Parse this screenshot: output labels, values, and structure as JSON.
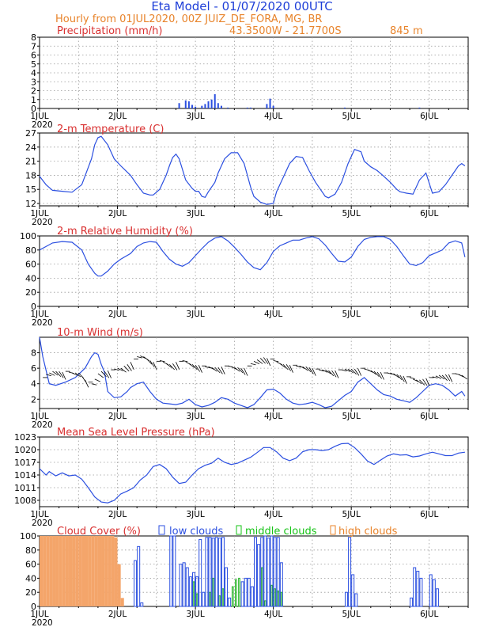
{
  "header": {
    "title": "Eta Model - 01/07/2020 00UTC",
    "subtitle": "Hourly from 01JUL2020, 00Z  JUIZ_DE_FORA, MG, BR",
    "location": "43.3500W - 21.7700S",
    "elevation": "845   m"
  },
  "colors": {
    "title": "#1f3fd8",
    "orange": "#e8832a",
    "red": "#d93030",
    "line": "#2b4fe0",
    "green": "#16c316",
    "grid": "#999999"
  },
  "chart_data": [
    {
      "id": "precip",
      "type": "bar",
      "title": "Precipitation (mm/h)",
      "ylim": [
        0,
        8
      ],
      "yticks": [
        0,
        1,
        2,
        3,
        4,
        5,
        6,
        7,
        8
      ],
      "xlabel_days": [
        "1JUL",
        "2JUL",
        "3JUL",
        "4JUL",
        "5JUL",
        "6JUL"
      ],
      "xlabel_year": "2020",
      "x": [
        43,
        45,
        46,
        47,
        48,
        50,
        51,
        52,
        53,
        54,
        55,
        56,
        58,
        64,
        65,
        70,
        71,
        72,
        94,
        117
      ],
      "values": [
        0.6,
        0.9,
        0.8,
        0.4,
        0.2,
        0.3,
        0.5,
        0.8,
        1.0,
        1.6,
        0.6,
        0.3,
        0.1,
        0.1,
        0.1,
        0.5,
        1.1,
        0.3,
        0.1,
        0.1
      ]
    },
    {
      "id": "temp",
      "type": "line",
      "title": "2-m Temperature (C)",
      "ylim": [
        11.5,
        27
      ],
      "yticks": [
        12,
        15,
        18,
        21,
        24,
        27
      ],
      "xlabel_days": [
        "1JUL",
        "2JUL",
        "3JUL",
        "4JUL",
        "5JUL",
        "6JUL"
      ],
      "xlabel_year": "2020",
      "x": [
        0,
        2,
        4,
        7,
        10,
        13,
        16,
        17,
        18,
        19,
        21,
        23,
        25,
        28,
        30,
        32,
        34,
        35,
        37,
        39,
        40,
        41,
        42,
        43,
        45,
        47,
        48,
        49,
        50,
        51,
        52,
        54,
        55,
        57,
        59,
        61,
        63,
        64,
        65,
        66,
        68,
        70,
        72,
        73,
        75,
        77,
        79,
        81,
        83,
        85,
        87,
        88,
        89,
        91,
        93,
        95,
        97,
        99,
        100,
        102,
        104,
        106,
        108,
        110,
        111,
        113,
        115,
        117,
        119,
        121,
        123,
        125,
        127,
        129,
        130,
        131
      ],
      "values": [
        17.8,
        16.0,
        14.8,
        14.6,
        14.4,
        16.0,
        21.5,
        24.5,
        26.0,
        26.3,
        24.5,
        21.5,
        20.0,
        18.0,
        16.0,
        14.2,
        13.8,
        13.8,
        15.0,
        18.0,
        20.0,
        21.8,
        22.5,
        21.5,
        17.0,
        15.2,
        14.6,
        14.6,
        13.5,
        13.3,
        14.5,
        16.5,
        18.5,
        21.5,
        22.8,
        22.8,
        20.5,
        18.0,
        15.5,
        13.5,
        12.3,
        11.8,
        12.0,
        14.5,
        17.5,
        20.5,
        22.0,
        21.8,
        19.0,
        16.5,
        14.5,
        13.5,
        13.2,
        14.0,
        16.5,
        20.5,
        23.5,
        23.0,
        21.0,
        19.8,
        19.0,
        17.8,
        16.5,
        15.0,
        14.5,
        14.2,
        14.0,
        17.0,
        18.5,
        14.2,
        14.5,
        16.0,
        18.0,
        20.0,
        20.5,
        20.0
      ]
    },
    {
      "id": "rh",
      "type": "line",
      "title": "2-m Relative Humidity (%)",
      "ylim": [
        0,
        100
      ],
      "yticks": [
        0,
        20,
        40,
        60,
        80,
        100
      ],
      "xlabel_days": [
        "1JUL",
        "2JUL",
        "3JUL",
        "4JUL",
        "5JUL",
        "6JUL"
      ],
      "xlabel_year": "2020",
      "x": [
        0,
        2,
        4,
        7,
        10,
        13,
        15,
        17,
        18,
        19,
        21,
        23,
        25,
        28,
        30,
        32,
        34,
        36,
        38,
        40,
        42,
        44,
        46,
        48,
        50,
        52,
        54,
        56,
        58,
        60,
        62,
        64,
        66,
        68,
        70,
        72,
        74,
        76,
        78,
        80,
        82,
        84,
        86,
        88,
        90,
        92,
        94,
        96,
        98,
        100,
        102,
        104,
        106,
        108,
        110,
        112,
        114,
        116,
        118,
        120,
        122,
        124,
        126,
        128,
        130,
        131
      ],
      "values": [
        80,
        85,
        90,
        92,
        91,
        80,
        60,
        47,
        43,
        43,
        50,
        60,
        67,
        75,
        85,
        90,
        92,
        91,
        78,
        67,
        60,
        57,
        62,
        72,
        82,
        91,
        97,
        99,
        93,
        84,
        74,
        63,
        55,
        52,
        62,
        78,
        86,
        90,
        94,
        94,
        97,
        99,
        96,
        87,
        75,
        64,
        63,
        70,
        85,
        95,
        98,
        99,
        99,
        95,
        85,
        72,
        60,
        58,
        62,
        72,
        76,
        80,
        90,
        93,
        90,
        70
      ]
    },
    {
      "id": "wind",
      "type": "line",
      "title": "10-m Wind (m/s)",
      "ylim": [
        0.8,
        10
      ],
      "yticks": [
        2,
        4,
        6,
        8
      ],
      "xlabel_days": [
        "1JUL",
        "2JUL",
        "3JUL",
        "4JUL",
        "5JUL",
        "6JUL"
      ],
      "xlabel_year": "2020",
      "x": [
        0,
        1,
        3,
        5,
        8,
        11,
        14,
        16,
        17,
        18,
        19,
        20,
        21,
        23,
        25,
        27,
        28,
        30,
        32,
        34,
        36,
        38,
        40,
        42,
        44,
        46,
        48,
        50,
        52,
        54,
        56,
        58,
        60,
        62,
        64,
        66,
        68,
        70,
        72,
        74,
        76,
        78,
        80,
        82,
        84,
        86,
        88,
        90,
        92,
        94,
        96,
        98,
        100,
        102,
        104,
        106,
        108,
        110,
        112,
        114,
        116,
        118,
        120,
        122,
        124,
        126,
        128,
        130,
        131
      ],
      "values": [
        10.0,
        7.5,
        4.0,
        3.8,
        4.2,
        4.8,
        6.0,
        7.5,
        8.0,
        7.8,
        6.5,
        5.5,
        3.0,
        2.2,
        2.3,
        3.0,
        3.5,
        4.0,
        4.2,
        3.0,
        2.0,
        1.5,
        1.4,
        1.3,
        1.5,
        2.0,
        1.3,
        1.0,
        1.2,
        1.6,
        2.2,
        2.0,
        1.5,
        1.2,
        0.9,
        1.3,
        2.2,
        3.2,
        3.3,
        2.8,
        2.0,
        1.5,
        1.3,
        1.4,
        1.6,
        1.3,
        0.9,
        1.1,
        1.8,
        2.5,
        3.0,
        4.2,
        4.8,
        4.0,
        3.2,
        2.6,
        2.4,
        2.0,
        1.8,
        1.6,
        2.2,
        3.0,
        3.8,
        4.0,
        3.8,
        3.2,
        2.4,
        3.0,
        2.4
      ]
    },
    {
      "id": "pressure",
      "type": "line",
      "title": "Mean Sea Level Pressure (hPa)",
      "ylim": [
        1006.5,
        1023
      ],
      "yticks": [
        1008,
        1011,
        1014,
        1017,
        1020,
        1023
      ],
      "xlabel_days": [
        "1JUL",
        "2JUL",
        "3JUL",
        "4JUL",
        "5JUL",
        "6JUL"
      ],
      "xlabel_year": "2020",
      "x": [
        0,
        2,
        3,
        5,
        7,
        9,
        11,
        13,
        15,
        17,
        19,
        21,
        23,
        25,
        27,
        29,
        31,
        33,
        35,
        37,
        39,
        41,
        43,
        45,
        47,
        49,
        51,
        53,
        55,
        57,
        59,
        61,
        63,
        65,
        67,
        69,
        71,
        73,
        75,
        77,
        79,
        81,
        83,
        85,
        87,
        89,
        91,
        93,
        95,
        97,
        99,
        101,
        103,
        105,
        107,
        109,
        111,
        113,
        115,
        117,
        119,
        121,
        123,
        125,
        127,
        129,
        131
      ],
      "values": [
        1015.5,
        1014.0,
        1014.8,
        1013.8,
        1014.5,
        1013.8,
        1014.0,
        1013.0,
        1011.0,
        1008.8,
        1007.6,
        1007.4,
        1008.0,
        1009.5,
        1010.2,
        1011.0,
        1012.8,
        1014.0,
        1016.0,
        1016.5,
        1015.5,
        1013.5,
        1012.0,
        1012.3,
        1014.0,
        1015.5,
        1016.3,
        1016.8,
        1018.0,
        1017.0,
        1016.5,
        1016.8,
        1017.5,
        1018.2,
        1019.3,
        1020.5,
        1020.5,
        1019.5,
        1018.0,
        1017.4,
        1018.0,
        1019.5,
        1020.0,
        1020.0,
        1019.8,
        1020.0,
        1020.8,
        1021.4,
        1021.5,
        1020.5,
        1019.0,
        1017.3,
        1016.5,
        1017.5,
        1018.5,
        1019.0,
        1018.7,
        1018.8,
        1018.3,
        1018.5,
        1019.0,
        1019.4,
        1019.0,
        1018.6,
        1018.6,
        1019.2,
        1019.4
      ]
    },
    {
      "id": "cloud",
      "type": "bar",
      "title": "Cloud Cover (%)",
      "ylim": [
        0,
        100
      ],
      "yticks": [
        0,
        20,
        40,
        60,
        80,
        100
      ],
      "xlabel_days": [
        "1JUL",
        "2JUL",
        "3JUL",
        "4JUL",
        "5JUL",
        "6JUL"
      ],
      "xlabel_year": "2020",
      "legend": {
        "low": "low clouds",
        "middle": "middle clouds",
        "high": "high clouds"
      },
      "series": [
        {
          "name": "high clouds",
          "color": "#f4a56a",
          "x": [
            0,
            1,
            2,
            3,
            4,
            5,
            6,
            7,
            8,
            9,
            10,
            11,
            12,
            13,
            14,
            15,
            16,
            17,
            18,
            19,
            20,
            21,
            22,
            23,
            24,
            25
          ],
          "values": [
            100,
            100,
            100,
            100,
            100,
            100,
            100,
            100,
            100,
            100,
            100,
            100,
            100,
            100,
            100,
            100,
            100,
            100,
            100,
            100,
            100,
            100,
            100,
            98,
            60,
            12
          ]
        },
        {
          "name": "middle clouds",
          "color": "#22b322",
          "x": [
            47,
            48,
            52,
            53,
            55,
            56,
            59,
            60,
            61,
            68,
            69,
            71,
            72,
            73,
            74
          ],
          "values": [
            35,
            18,
            20,
            40,
            15,
            25,
            28,
            38,
            40,
            55,
            8,
            30,
            25,
            22,
            20
          ]
        },
        {
          "name": "low clouds",
          "color": "#2b4fe0",
          "x": [
            29,
            30,
            31,
            40,
            41,
            43,
            44,
            45,
            46,
            47,
            48,
            49,
            50,
            51,
            52,
            53,
            54,
            55,
            56,
            57,
            58,
            62,
            63,
            64,
            65,
            66,
            67,
            68,
            69,
            70,
            71,
            72,
            73,
            74,
            94,
            95,
            96,
            97,
            114,
            115,
            116,
            117,
            120,
            121,
            122
          ],
          "values": [
            65,
            85,
            5,
            100,
            100,
            60,
            62,
            55,
            42,
            48,
            42,
            95,
            20,
            98,
            98,
            97,
            98,
            97,
            98,
            55,
            12,
            35,
            40,
            40,
            28,
            98,
            88,
            98,
            100,
            97,
            100,
            98,
            98,
            62,
            20,
            98,
            45,
            18,
            12,
            55,
            50,
            40,
            45,
            38,
            25
          ]
        }
      ]
    }
  ],
  "wind_barbs": {
    "x": [
      1,
      2,
      3,
      4,
      5,
      6,
      7,
      8,
      9,
      10,
      11,
      12,
      13,
      14,
      15,
      16,
      17,
      18,
      19,
      20,
      21,
      22,
      23,
      24,
      25,
      26,
      27,
      28,
      29,
      30,
      31,
      32,
      33,
      34,
      35,
      36,
      37,
      38,
      39,
      40,
      41,
      42,
      43,
      44,
      45,
      46,
      47,
      48,
      49,
      50,
      51,
      52,
      53,
      54,
      55,
      56,
      57,
      58,
      59,
      60,
      61,
      62,
      63,
      64,
      65,
      66,
      67,
      68,
      69,
      70,
      71,
      72,
      73,
      74,
      75,
      76,
      77,
      78,
      79,
      80,
      81,
      82,
      83,
      84,
      85,
      86,
      87,
      88,
      89,
      90,
      91,
      92,
      93,
      94,
      95,
      96,
      97,
      98,
      99,
      100,
      101,
      102,
      103,
      104,
      105,
      106,
      107,
      108,
      109,
      110,
      111,
      112,
      113,
      114,
      115,
      116,
      117,
      118,
      119,
      120,
      121,
      122,
      123,
      124,
      125,
      126,
      127,
      128,
      129,
      130
    ],
    "y": [
      4.8,
      5.2,
      5.4,
      5.6,
      5.6,
      5.6,
      5.5,
      5.6,
      5.5,
      5.4,
      5.4,
      5.4,
      5.0,
      4.5,
      4.2,
      4.0,
      4.6,
      5.3,
      5.6,
      5.6,
      5.7,
      5.8,
      5.9,
      6.0,
      6.0,
      6.3,
      6.5,
      6.8,
      7.2,
      7.5,
      7.6,
      7.5,
      7.2,
      7.0,
      6.8,
      6.9,
      7.0,
      6.8,
      6.6,
      6.5,
      6.6,
      6.8,
      6.9,
      7.0,
      6.8,
      6.6,
      6.5,
      6.4,
      6.4,
      6.3,
      6.2,
      6.2,
      6.1,
      6.1,
      6.1,
      6.2,
      6.3,
      6.3,
      6.2,
      6.1,
      6.1,
      6.0,
      6.0,
      6.3,
      6.6,
      6.9,
      7.1,
      7.3,
      7.4,
      7.3,
      7.2,
      7.0,
      6.8,
      6.6,
      6.5,
      6.5,
      6.4,
      6.4,
      6.3,
      6.3,
      6.2,
      6.2,
      6.1,
      6.0,
      5.9,
      5.8,
      5.8,
      5.8,
      5.7,
      5.7,
      5.7,
      5.8,
      5.8,
      5.9,
      5.9,
      5.9,
      5.9,
      6.0,
      6.0,
      5.9,
      5.8,
      5.7,
      5.6,
      5.5,
      5.5,
      5.4,
      5.4,
      5.4,
      5.3,
      5.2,
      5.1,
      5.0,
      4.9,
      4.8,
      4.6,
      4.5,
      4.5,
      4.6,
      4.7,
      4.8,
      4.9,
      5.0,
      5.1,
      5.1,
      5.2,
      5.2,
      5.3,
      5.3,
      5.2,
      5.1
    ]
  }
}
